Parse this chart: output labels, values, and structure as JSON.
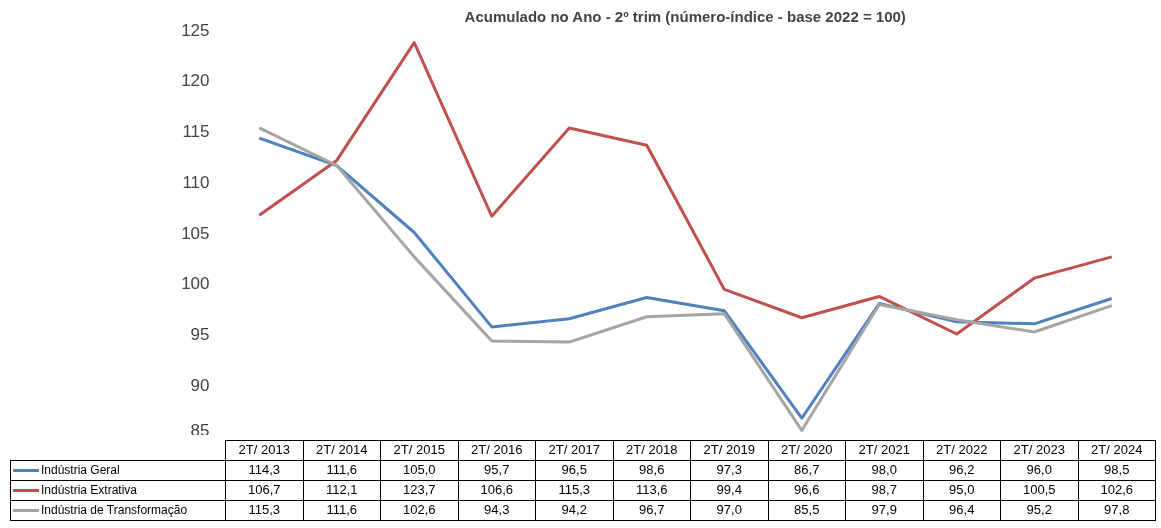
{
  "chart_data": {
    "type": "line",
    "title": "Acumulado no Ano - 2º trim (número-índice - base 2022 = 100)",
    "categories": [
      "2T/ 2013",
      "2T/ 2014",
      "2T/ 2015",
      "2T/ 2016",
      "2T/ 2017",
      "2T/ 2018",
      "2T/ 2019",
      "2T/ 2020",
      "2T/ 2021",
      "2T/ 2022",
      "2T/ 2023",
      "2T/ 2024"
    ],
    "series": [
      {
        "name": "Indústria Geral",
        "color": "#4f81bd",
        "values": [
          114.3,
          111.6,
          105.0,
          95.7,
          96.5,
          98.6,
          97.3,
          86.7,
          98.0,
          96.2,
          96.0,
          98.5
        ],
        "value_labels": [
          "114,3",
          "111,6",
          "105,0",
          "95,7",
          "96,5",
          "98,6",
          "97,3",
          "86,7",
          "98,0",
          "96,2",
          "96,0",
          "98,5"
        ]
      },
      {
        "name": "Indústria Extrativa",
        "color": "#c0504d",
        "values": [
          106.7,
          112.1,
          123.7,
          106.6,
          115.3,
          113.6,
          99.4,
          96.6,
          98.7,
          95.0,
          100.5,
          102.6
        ],
        "value_labels": [
          "106,7",
          "112,1",
          "123,7",
          "106,6",
          "115,3",
          "113,6",
          "99,4",
          "96,6",
          "98,7",
          "95,0",
          "100,5",
          "102,6"
        ]
      },
      {
        "name": "Indústria de Transformação",
        "color": "#a5a5a5",
        "values": [
          115.3,
          111.6,
          102.6,
          94.3,
          94.2,
          96.7,
          97.0,
          85.5,
          97.9,
          96.4,
          95.2,
          97.8
        ],
        "value_labels": [
          "115,3",
          "111,6",
          "102,6",
          "94,3",
          "94,2",
          "96,7",
          "97,0",
          "85,5",
          "97,9",
          "96,4",
          "95,2",
          "97,8"
        ]
      }
    ],
    "ylim": [
      85,
      125
    ],
    "yticks": [
      85,
      90,
      95,
      100,
      105,
      110,
      115,
      120,
      125
    ],
    "grid": false,
    "legend": "bottom",
    "marker": "none",
    "line_style": "solid"
  }
}
